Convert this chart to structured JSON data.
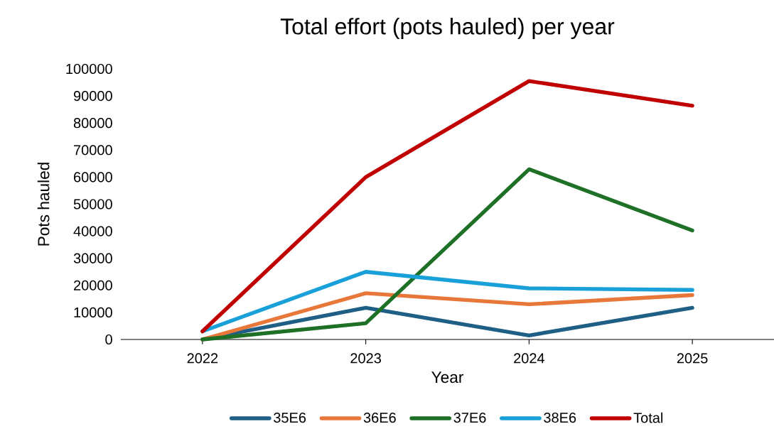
{
  "chart_data": {
    "type": "line",
    "title": "Total effort (pots hauled) per year",
    "xlabel": "Year",
    "ylabel": "Pots hauled",
    "categories": [
      "2022",
      "2023",
      "2024",
      "2025"
    ],
    "series": [
      {
        "name": "35E6",
        "color": "#1f5f86",
        "values": [
          0,
          11700,
          1500,
          11700
        ]
      },
      {
        "name": "36E6",
        "color": "#e8773a",
        "values": [
          0,
          17100,
          13000,
          16400
        ]
      },
      {
        "name": "37E6",
        "color": "#1e7026",
        "values": [
          0,
          6000,
          62900,
          40300
        ]
      },
      {
        "name": "38E6",
        "color": "#1aa0d8",
        "values": [
          3000,
          25000,
          18900,
          18300
        ]
      },
      {
        "name": "Total",
        "color": "#c00000",
        "values": [
          3000,
          60000,
          95500,
          86400
        ]
      }
    ],
    "ylim": [
      0,
      100000
    ],
    "yticks": [
      0,
      10000,
      20000,
      30000,
      40000,
      50000,
      60000,
      70000,
      80000,
      90000,
      100000
    ],
    "legend": "bottom",
    "grid": false,
    "marker": "none",
    "line_style": "solid"
  }
}
